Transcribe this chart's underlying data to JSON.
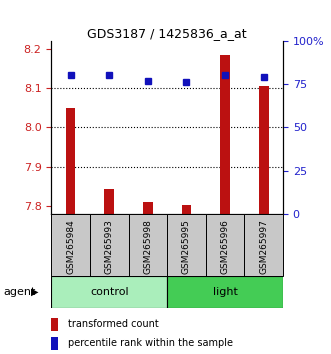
{
  "title": "GDS3187 / 1425836_a_at",
  "samples": [
    "GSM265984",
    "GSM265993",
    "GSM265998",
    "GSM265995",
    "GSM265996",
    "GSM265997"
  ],
  "red_values": [
    8.05,
    7.845,
    7.812,
    7.802,
    8.185,
    8.105
  ],
  "blue_percentiles": [
    80,
    80,
    77,
    76,
    80,
    79
  ],
  "ylim_left": [
    7.78,
    8.22
  ],
  "ylim_right": [
    0,
    100
  ],
  "yticks_left": [
    7.8,
    7.9,
    8.0,
    8.1,
    8.2
  ],
  "yticks_right": [
    0,
    25,
    50,
    75,
    100
  ],
  "ytick_labels_right": [
    "0",
    "25",
    "50",
    "75",
    "100%"
  ],
  "hlines": [
    7.9,
    8.0,
    8.1
  ],
  "bar_bottom": 7.78,
  "red_color": "#BB1111",
  "blue_color": "#1111BB",
  "left_tick_color": "#CC2222",
  "right_tick_color": "#2222CC",
  "legend_red": "transformed count",
  "legend_blue": "percentile rank within the sample",
  "agent_label": "agent",
  "control_color": "#AAEEBB",
  "light_color": "#44CC55",
  "gray_color": "#C8C8C8",
  "bar_width": 0.25,
  "group_label_fontsize": 8,
  "sample_fontsize": 6.5,
  "title_fontsize": 9
}
